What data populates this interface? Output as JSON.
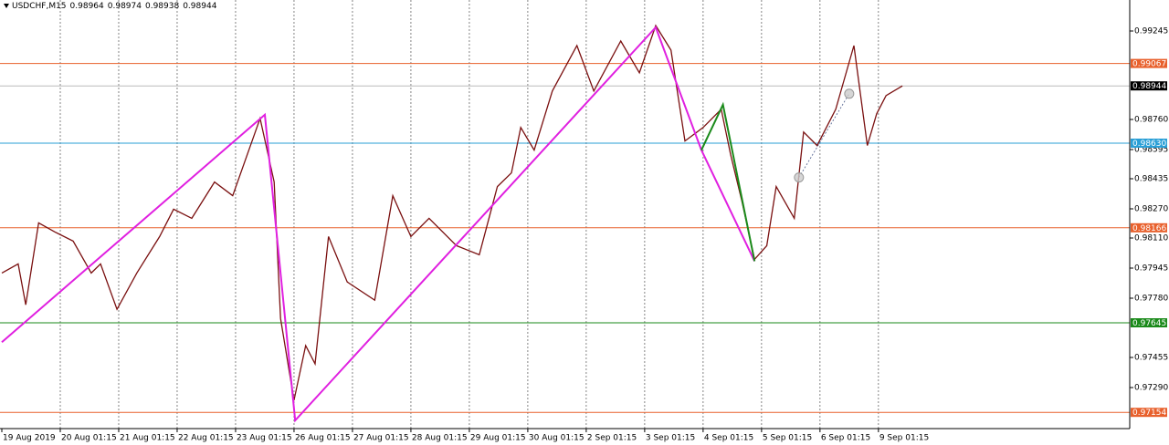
{
  "chart_data": {
    "type": "price",
    "symbol": "USDCHF,M15",
    "ohlc": [
      0.98964,
      0.98974,
      0.98938,
      0.98944
    ],
    "xlim": [
      0,
      19.3
    ],
    "ylim": [
      0.97065,
      0.99415
    ],
    "xticks": [
      {
        "value": 0,
        "label": "19 Aug 2019"
      },
      {
        "value": 1,
        "label": "20 Aug 01:15"
      },
      {
        "value": 2,
        "label": "21 Aug 01:15"
      },
      {
        "value": 3,
        "label": "22 Aug 01:15"
      },
      {
        "value": 4,
        "label": "23 Aug 01:15"
      },
      {
        "value": 5,
        "label": "26 Aug 01:15"
      },
      {
        "value": 6,
        "label": "27 Aug 01:15"
      },
      {
        "value": 7,
        "label": "28 Aug 01:15"
      },
      {
        "value": 8,
        "label": "29 Aug 01:15"
      },
      {
        "value": 9,
        "label": "30 Aug 01:15"
      },
      {
        "value": 10,
        "label": "2 Sep 01:15"
      },
      {
        "value": 11,
        "label": "3 Sep 01:15"
      },
      {
        "value": 12,
        "label": "4 Sep 01:15"
      },
      {
        "value": 13,
        "label": "5 Sep 01:15"
      },
      {
        "value": 14,
        "label": "6 Sep 01:15"
      },
      {
        "value": 15,
        "label": "9 Sep 01:15"
      }
    ],
    "yticks": [
      0.99245,
      {
        "value": 0.9876,
        "label": "0.98760"
      },
      0.98595,
      0.98435,
      {
        "value": 0.9827,
        "label": "0.98270"
      },
      {
        "value": 0.9811,
        "label": "0.98110"
      },
      0.97945,
      {
        "value": 0.9778,
        "label": "0.97780"
      },
      0.97455,
      {
        "value": 0.9729,
        "label": "0.97290"
      }
    ],
    "grid": true,
    "series": [
      {
        "color": "#7a1010",
        "x": [
          0,
          0.28,
          0.41,
          0.63,
          0.91,
          1.22,
          1.53,
          1.69,
          1.97,
          2.31,
          2.7,
          2.94,
          3.25,
          3.64,
          3.95,
          4.42,
          4.66,
          4.77,
          5.0,
          5.2,
          5.36,
          5.59,
          5.91,
          6.38,
          6.69,
          7.0,
          7.31,
          7.78,
          8.17,
          8.48,
          8.72,
          8.88,
          9.11,
          9.42,
          9.84,
          10.13,
          10.59,
          10.91,
          11.19,
          11.45,
          11.69,
          12.0,
          12.31,
          12.47,
          12.66,
          12.88,
          13.09,
          13.25,
          13.56,
          13.72,
          13.95,
          14.27,
          14.58,
          14.81,
          14.97,
          15.13,
          15.41
        ],
        "values": [
          0.97918,
          0.97968,
          0.97744,
          0.98193,
          0.98143,
          0.98093,
          0.97918,
          0.97968,
          0.97719,
          0.97918,
          0.98118,
          0.98268,
          0.98218,
          0.98417,
          0.98342,
          0.98766,
          0.98417,
          0.97669,
          0.9722,
          0.9752,
          0.9742,
          0.98118,
          0.97869,
          0.97769,
          0.98342,
          0.98118,
          0.98218,
          0.98068,
          0.98018,
          0.98392,
          0.98467,
          0.98716,
          0.98592,
          0.98916,
          0.99165,
          0.98916,
          0.9919,
          0.99016,
          0.99275,
          0.9914,
          0.98642,
          0.98716,
          0.98816,
          0.98567,
          0.98317,
          0.97993,
          0.98068,
          0.98392,
          0.98218,
          0.98691,
          0.98617,
          0.98816,
          0.99165,
          0.98617,
          0.98791,
          0.98891,
          0.98944
        ]
      }
    ],
    "overlays": [
      {
        "color": "#e020e0",
        "x": [
          0,
          4.5,
          5.02,
          11.19,
          11.97,
          12.88
        ],
        "values": [
          0.97539,
          0.98786,
          0.9711,
          0.99265,
          0.98592,
          0.97983
        ]
      },
      {
        "color": "#1a8a1a",
        "x": [
          11.97,
          12.34,
          12.88
        ],
        "values": [
          0.98592,
          0.98841,
          0.97983
        ]
      },
      {
        "color": "#4a5a8a",
        "dashed": true,
        "x": [
          13.64,
          14.5
        ],
        "values": [
          0.98442,
          0.98901
        ]
      }
    ],
    "levels": [
      {
        "value": 0.99067,
        "color": "#e8602c"
      },
      {
        "value": 0.9863,
        "color": "#2a9fd6",
        "label": "0.98630"
      },
      {
        "value": 0.98166,
        "color": "#e8602c"
      },
      {
        "value": 0.97645,
        "color": "#1a8a1a"
      },
      {
        "value": 0.97154,
        "color": "#e8602c"
      }
    ],
    "last_price": 0.98944
  }
}
